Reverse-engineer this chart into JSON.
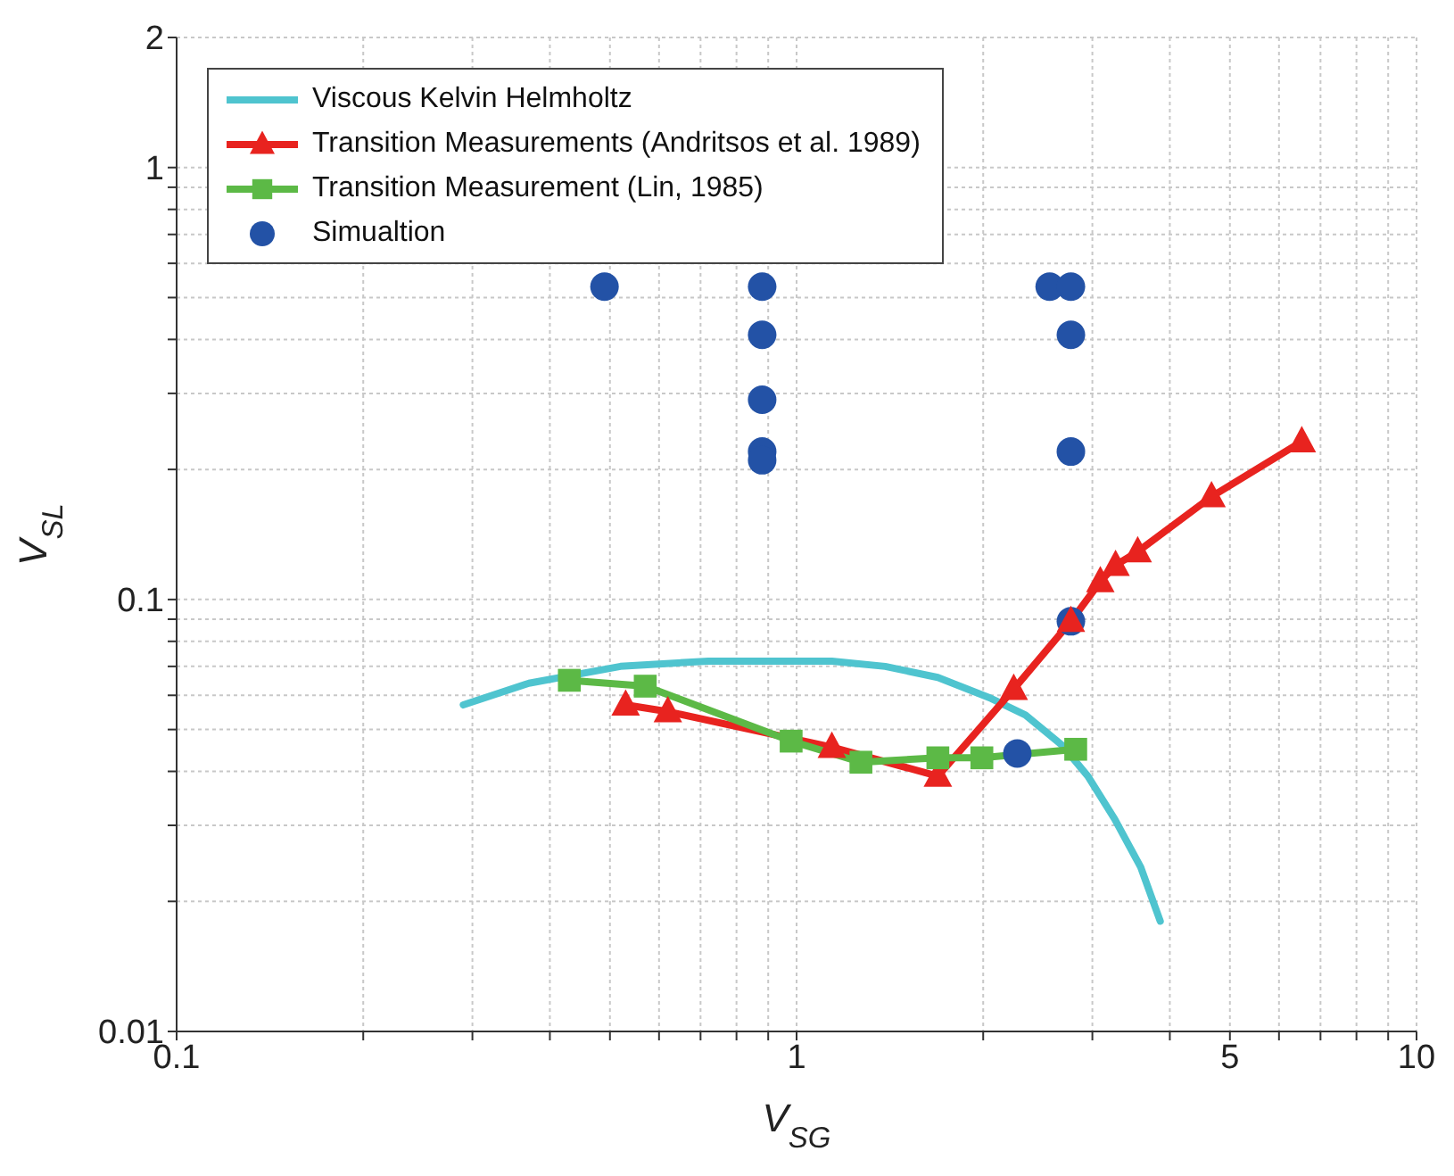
{
  "chart_data": {
    "type": "line",
    "xlabel": "V$_{SG}$",
    "ylabel": "V$_{SL}$",
    "log": "xy",
    "grid": true,
    "legend": "top left",
    "xlim": [
      0.1,
      10
    ],
    "xticks": [
      0.1,
      {
        "value": 0.2,
        "label": null
      },
      {
        "value": 0.3,
        "label": null
      },
      {
        "value": 0.4,
        "label": null
      },
      {
        "value": 0.5,
        "label": null
      },
      {
        "value": 0.6,
        "label": null
      },
      {
        "value": 0.7,
        "label": null
      },
      {
        "value": 0.8,
        "label": null
      },
      {
        "value": 0.9,
        "label": null
      },
      1,
      {
        "value": 2,
        "label": null
      },
      {
        "value": 3,
        "label": null
      },
      {
        "value": 4,
        "label": null
      },
      5,
      {
        "value": 6,
        "label": null
      },
      {
        "value": 7,
        "label": null
      },
      {
        "value": 8,
        "label": null
      },
      {
        "value": 9,
        "label": null
      },
      10
    ],
    "ylim": [
      0.01,
      2
    ],
    "yticks": [
      0.01,
      {
        "value": 0.02,
        "label": null
      },
      {
        "value": 0.03,
        "label": null
      },
      {
        "value": 0.04,
        "label": null
      },
      {
        "value": 0.05,
        "label": null
      },
      {
        "value": 0.06,
        "label": null
      },
      {
        "value": 0.07,
        "label": null
      },
      {
        "value": 0.08,
        "label": null
      },
      {
        "value": 0.09,
        "label": null
      },
      0.1,
      {
        "value": 0.2,
        "label": null
      },
      {
        "value": 0.3,
        "label": null
      },
      {
        "value": 0.4,
        "label": null
      },
      {
        "value": 0.5,
        "label": null
      },
      {
        "value": 0.6,
        "label": null
      },
      {
        "value": 0.7,
        "label": null
      },
      {
        "value": 0.8,
        "label": null
      },
      {
        "value": 0.9,
        "label": null
      },
      1,
      2
    ],
    "series": [
      {
        "name": "Viscous Kelvin Helmholtz",
        "marker": "none",
        "color": "#4fc4cf",
        "x": [
          0.29,
          0.37,
          0.52,
          0.72,
          0.89,
          1.14,
          1.39,
          1.69,
          2.06,
          2.34,
          2.68,
          2.95,
          3.26,
          3.59,
          3.86
        ],
        "values": [
          0.057,
          0.064,
          0.07,
          0.072,
          0.072,
          0.072,
          0.07,
          0.066,
          0.059,
          0.054,
          0.046,
          0.039,
          0.031,
          0.024,
          0.018
        ]
      },
      {
        "name": "Transition Measurements (Andritsos et al. 1989)",
        "marker": "triangle",
        "color": "#e8231f",
        "x": [
          0.53,
          0.62,
          1.14,
          1.69,
          2.24,
          2.77,
          3.09,
          3.27,
          3.55,
          4.67,
          6.53
        ],
        "values": [
          0.057,
          0.055,
          0.0455,
          0.039,
          0.062,
          0.089,
          0.11,
          0.12,
          0.129,
          0.173,
          0.232
        ]
      },
      {
        "name": "Transition Measurement (Lin, 1985)",
        "marker": "square",
        "color": "#5cb946",
        "x": [
          0.43,
          0.57,
          0.98,
          1.27,
          1.69,
          1.99,
          2.82
        ],
        "values": [
          0.065,
          0.063,
          0.047,
          0.042,
          0.043,
          0.043,
          0.045
        ]
      },
      {
        "name": "Simualtion",
        "type": "scatter",
        "marker": "circle",
        "color": "#2352a6",
        "x": [
          0.49,
          0.88,
          0.88,
          0.88,
          0.88,
          0.88,
          2.56,
          2.77,
          2.77,
          2.77,
          2.77,
          2.27
        ],
        "values": [
          0.53,
          0.53,
          0.41,
          0.29,
          0.22,
          0.21,
          0.53,
          0.53,
          0.41,
          0.22,
          0.089,
          0.044
        ]
      }
    ]
  }
}
